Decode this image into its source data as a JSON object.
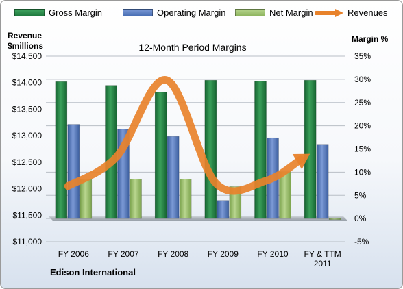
{
  "chart_data": {
    "type": "bar",
    "title": "12-Month Period Margins",
    "left_axis_title": [
      "Revenue",
      "$millions"
    ],
    "right_axis_title": "Margin %",
    "subtitle_label": "Edison International",
    "categories": [
      [
        "FY 2006"
      ],
      [
        "FY 2007"
      ],
      [
        "FY 2008"
      ],
      [
        "FY 2009"
      ],
      [
        "FY 2010"
      ],
      [
        "FY & TTM",
        "2011"
      ]
    ],
    "y_left": {
      "min": 11000,
      "max": 14500,
      "step": 500,
      "ticks": [
        "$11,000",
        "$11,500",
        "$12,000",
        "$12,500",
        "$13,000",
        "$13,500",
        "$14,000",
        "$14,500"
      ]
    },
    "y_right": {
      "min": -5,
      "max": 35,
      "step": 5,
      "ticks": [
        "-5%",
        "0%",
        "5%",
        "10%",
        "15%",
        "20%",
        "25%",
        "30%",
        "35%"
      ]
    },
    "series": [
      {
        "name": "Gross Margin",
        "axis": "right",
        "kind": "bar",
        "color": "#1f7a3e",
        "values": [
          29.5,
          28.7,
          27.2,
          29.8,
          29.6,
          29.8
        ]
      },
      {
        "name": "Operating Margin",
        "axis": "right",
        "kind": "bar",
        "color": "#4a6fb5",
        "values": [
          20.3,
          19.3,
          17.7,
          3.9,
          17.4,
          16.0
        ]
      },
      {
        "name": "Net Margin",
        "axis": "right",
        "kind": "bar",
        "color": "#8fb560",
        "values": [
          8.5,
          8.5,
          8.5,
          6.9,
          10.1,
          -0.2
        ]
      },
      {
        "name": "Revenues",
        "axis": "left",
        "kind": "line",
        "color": "#e8822b",
        "values": [
          12050,
          12600,
          14050,
          12100,
          12150,
          12550
        ]
      }
    ],
    "grid": true,
    "legend_position": "top"
  }
}
